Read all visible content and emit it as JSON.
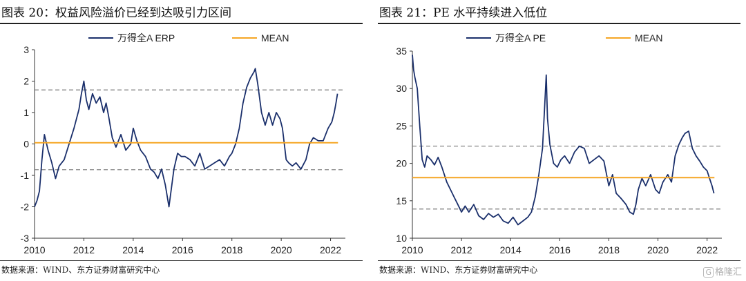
{
  "watermark": "格隆汇",
  "chart_data": [
    {
      "type": "line",
      "title": "图表 20：权益风险溢价已经到达吸引力区间",
      "source": "数据来源：WIND、东方证券财富研究中心",
      "xlim": [
        2010,
        2022.6
      ],
      "ylim": [
        -3,
        3
      ],
      "xticks": [
        2010,
        2012,
        2014,
        2016,
        2018,
        2020,
        2022
      ],
      "yticks": [
        3,
        2,
        1,
        0,
        -1,
        -2,
        -3
      ],
      "reference_lines": [
        1.72,
        -0.82
      ],
      "series": [
        {
          "name": "万得全A ERP",
          "color": "#1a2f6b",
          "x": [
            2010.0,
            2010.1,
            2010.2,
            2010.3,
            2010.4,
            2010.55,
            2010.7,
            2010.85,
            2011.0,
            2011.2,
            2011.4,
            2011.6,
            2011.8,
            2011.9,
            2012.0,
            2012.1,
            2012.2,
            2012.35,
            2012.5,
            2012.65,
            2012.8,
            2012.9,
            2013.0,
            2013.15,
            2013.3,
            2013.5,
            2013.7,
            2013.9,
            2014.0,
            2014.15,
            2014.3,
            2014.5,
            2014.7,
            2014.85,
            2015.0,
            2015.15,
            2015.3,
            2015.45,
            2015.55,
            2015.65,
            2015.8,
            2015.95,
            2016.1,
            2016.3,
            2016.5,
            2016.7,
            2016.9,
            2017.1,
            2017.3,
            2017.5,
            2017.7,
            2017.9,
            2018.0,
            2018.15,
            2018.3,
            2018.45,
            2018.6,
            2018.75,
            2018.9,
            2018.95,
            2019.05,
            2019.2,
            2019.35,
            2019.5,
            2019.65,
            2019.8,
            2019.95,
            2020.05,
            2020.2,
            2020.3,
            2020.45,
            2020.6,
            2020.8,
            2021.0,
            2021.15,
            2021.3,
            2021.5,
            2021.7,
            2021.9,
            2022.05,
            2022.15,
            2022.22,
            2022.28
          ],
          "y": [
            -2.0,
            -1.8,
            -1.5,
            -0.5,
            0.3,
            -0.2,
            -0.6,
            -1.1,
            -0.7,
            -0.5,
            0.0,
            0.5,
            1.1,
            1.6,
            2.0,
            1.4,
            1.1,
            1.6,
            1.3,
            1.5,
            1.0,
            1.3,
            0.9,
            0.2,
            -0.1,
            0.3,
            -0.2,
            0.0,
            0.5,
            0.1,
            -0.2,
            -0.4,
            -0.8,
            -0.9,
            -1.1,
            -0.8,
            -1.3,
            -2.0,
            -1.4,
            -0.8,
            -0.3,
            -0.4,
            -0.4,
            -0.5,
            -0.7,
            -0.3,
            -0.8,
            -0.7,
            -0.6,
            -0.5,
            -0.7,
            -0.4,
            -0.3,
            0.0,
            0.5,
            1.3,
            1.8,
            2.1,
            2.3,
            2.4,
            1.9,
            1.0,
            0.6,
            1.0,
            0.6,
            1.0,
            0.8,
            0.5,
            -0.5,
            -0.6,
            -0.7,
            -0.6,
            -0.8,
            -0.5,
            0.0,
            0.2,
            0.1,
            0.1,
            0.5,
            0.7,
            1.0,
            1.3,
            1.6
          ]
        },
        {
          "name": "MEAN",
          "color": "#f5a623",
          "x": [
            2010.0,
            2022.3
          ],
          "y": [
            0.04,
            0.04
          ]
        }
      ]
    },
    {
      "type": "line",
      "title": "图表 21：PE 水平持续进入低位",
      "source": "数据来源：WIND、东方证券财富研究中心",
      "xlim": [
        2010,
        2022.6
      ],
      "ylim": [
        10,
        35
      ],
      "xticks": [
        2010,
        2012,
        2014,
        2016,
        2018,
        2020,
        2022
      ],
      "yticks": [
        35,
        30,
        25,
        20,
        15,
        10
      ],
      "reference_lines": [
        22.3,
        13.9
      ],
      "series": [
        {
          "name": "万得全A PE",
          "color": "#1a2f6b",
          "x": [
            2010.0,
            2010.05,
            2010.1,
            2010.2,
            2010.3,
            2010.4,
            2010.5,
            2010.6,
            2010.75,
            2010.9,
            2011.05,
            2011.2,
            2011.4,
            2011.55,
            2011.7,
            2011.85,
            2012.0,
            2012.15,
            2012.3,
            2012.5,
            2012.7,
            2012.9,
            2013.1,
            2013.3,
            2013.5,
            2013.7,
            2013.9,
            2014.1,
            2014.3,
            2014.5,
            2014.7,
            2014.85,
            2015.0,
            2015.15,
            2015.3,
            2015.4,
            2015.45,
            2015.5,
            2015.6,
            2015.75,
            2015.9,
            2016.05,
            2016.2,
            2016.4,
            2016.6,
            2016.8,
            2017.0,
            2017.2,
            2017.4,
            2017.6,
            2017.8,
            2018.0,
            2018.15,
            2018.3,
            2018.5,
            2018.7,
            2018.85,
            2019.0,
            2019.1,
            2019.2,
            2019.35,
            2019.5,
            2019.7,
            2019.9,
            2020.05,
            2020.2,
            2020.4,
            2020.55,
            2020.7,
            2020.85,
            2021.0,
            2021.1,
            2021.25,
            2021.4,
            2021.55,
            2021.7,
            2021.85,
            2022.0,
            2022.1,
            2022.2,
            2022.28
          ],
          "y": [
            34.5,
            32.5,
            31.5,
            30.0,
            25.0,
            20.5,
            19.5,
            21.0,
            20.5,
            19.8,
            20.8,
            19.5,
            17.5,
            16.5,
            15.5,
            14.5,
            13.5,
            14.3,
            13.5,
            14.5,
            13.0,
            12.5,
            13.3,
            12.8,
            13.2,
            12.3,
            12.0,
            12.8,
            11.8,
            12.3,
            12.8,
            13.5,
            15.5,
            18.5,
            22.0,
            28.5,
            31.8,
            26.0,
            22.5,
            20.0,
            19.5,
            20.5,
            21.0,
            20.0,
            21.5,
            22.3,
            22.0,
            20.0,
            20.5,
            21.0,
            20.3,
            17.0,
            18.5,
            16.0,
            15.3,
            14.5,
            13.5,
            13.2,
            14.5,
            16.5,
            18.0,
            17.0,
            18.5,
            16.5,
            16.0,
            17.5,
            18.5,
            17.5,
            21.0,
            22.5,
            23.5,
            24.0,
            24.3,
            22.0,
            21.0,
            20.3,
            19.5,
            19.0,
            18.0,
            17.0,
            16.0
          ]
        },
        {
          "name": "MEAN",
          "color": "#f5a623",
          "x": [
            2010.0,
            2022.3
          ],
          "y": [
            18.1,
            18.1
          ]
        }
      ]
    }
  ]
}
